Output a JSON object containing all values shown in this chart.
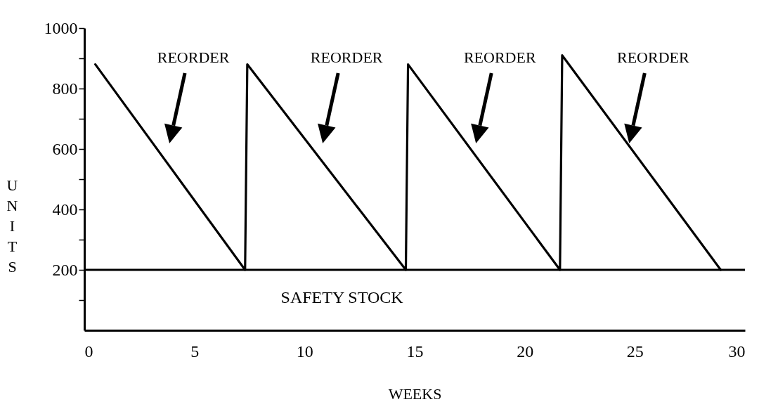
{
  "chart_data": {
    "type": "line",
    "xlabel": "WEEKS",
    "ylabel": "UNITS",
    "x": [
      0.5,
      7.3,
      7.4,
      14.6,
      14.7,
      21.6,
      21.7,
      28.9
    ],
    "series": [
      {
        "color": "#000000",
        "values": [
          880,
          200,
          880,
          200,
          880,
          200,
          910,
          200
        ]
      }
    ],
    "xlim": [
      0,
      30
    ],
    "xticks": [
      0,
      5,
      10,
      15,
      20,
      25,
      30
    ],
    "ylim": [
      0,
      1000
    ],
    "yticks": [
      {
        "value": 100,
        "label": null
      },
      200,
      {
        "value": 300,
        "label": null
      },
      400,
      {
        "value": 500,
        "label": null
      },
      600,
      {
        "value": 700,
        "label": null
      },
      800,
      {
        "value": 900,
        "label": null
      },
      1000
    ],
    "ref_lines": [
      {
        "axis": "y",
        "value": 200,
        "label": "SAFETY STOCK",
        "color": "#000000"
      }
    ],
    "annotations": [
      "REORDER",
      "REORDER",
      "REORDER",
      "REORDER"
    ],
    "grid": false,
    "marker": "none",
    "line_style": "solid"
  }
}
